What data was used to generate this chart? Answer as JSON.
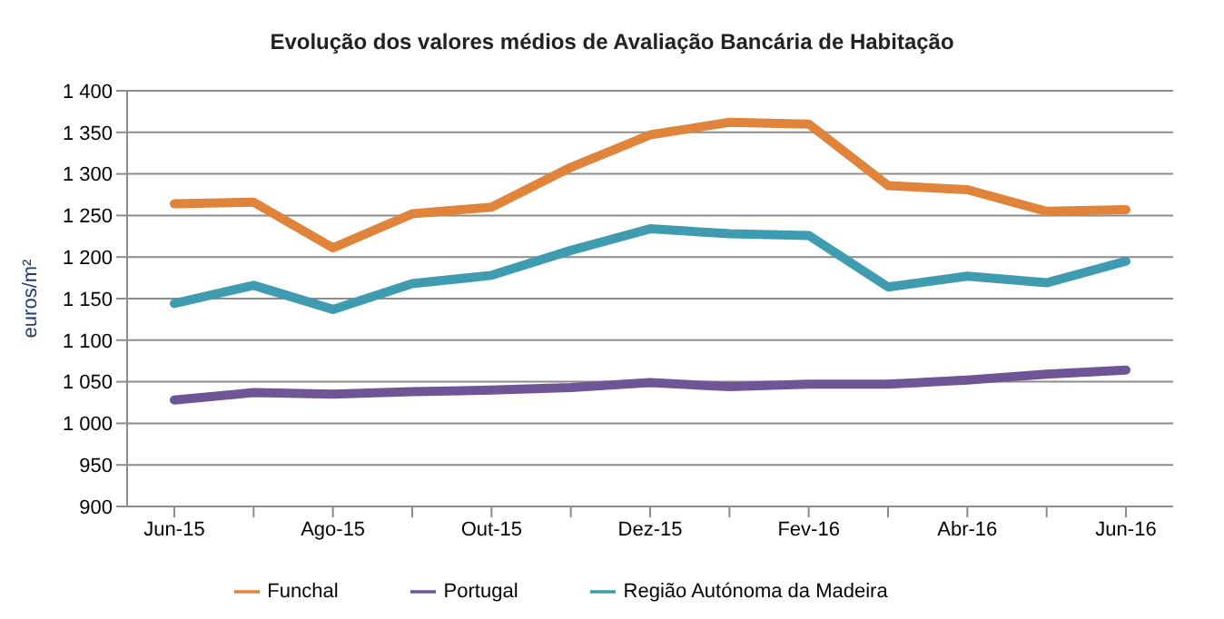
{
  "chart_data": {
    "type": "line",
    "title": "Evolução dos valores médios de Avaliação Bancária de Habitação",
    "ylabel": "euros/m²",
    "categories": [
      "Jun-15",
      null,
      "Ago-15",
      null,
      "Out-15",
      null,
      "Dez-15",
      null,
      "Fev-16",
      null,
      "Abr-16",
      null,
      "Jun-16"
    ],
    "series": [
      {
        "name": "Portugal",
        "color": "#6f5596",
        "values": [
          1028,
          1037,
          1035,
          1038,
          1040,
          1043,
          1049,
          1044,
          1047,
          1047,
          1052,
          1059,
          1064
        ]
      },
      {
        "name": "Região Autónoma da Madeira",
        "color": "#3e9bb0",
        "values": [
          1144,
          1166,
          1137,
          1168,
          1178,
          1208,
          1234,
          1228,
          1226,
          1164,
          1177,
          1169,
          1195
        ]
      },
      {
        "name": "Funchal",
        "color": "#e0843b",
        "values": [
          1264,
          1266,
          1211,
          1252,
          1260,
          1308,
          1347,
          1362,
          1360,
          1286,
          1281,
          1255,
          1257
        ]
      }
    ],
    "ylim": [
      900,
      1400
    ],
    "yticks": [
      {
        "value": 900,
        "label": "900"
      },
      {
        "value": 950,
        "label": "950"
      },
      {
        "value": 1000,
        "label": "1 000"
      },
      {
        "value": 1050,
        "label": "1 050"
      },
      {
        "value": 1100,
        "label": "1 100"
      },
      {
        "value": 1150,
        "label": "1 150"
      },
      {
        "value": 1200,
        "label": "1 200"
      },
      {
        "value": 1250,
        "label": "1 250"
      },
      {
        "value": 1300,
        "label": "1 300"
      },
      {
        "value": 1350,
        "label": "1 350"
      },
      {
        "value": 1400,
        "label": "1 400"
      }
    ],
    "grid": "y",
    "legend": "bottom",
    "marker": "none",
    "line_style": "solid"
  }
}
